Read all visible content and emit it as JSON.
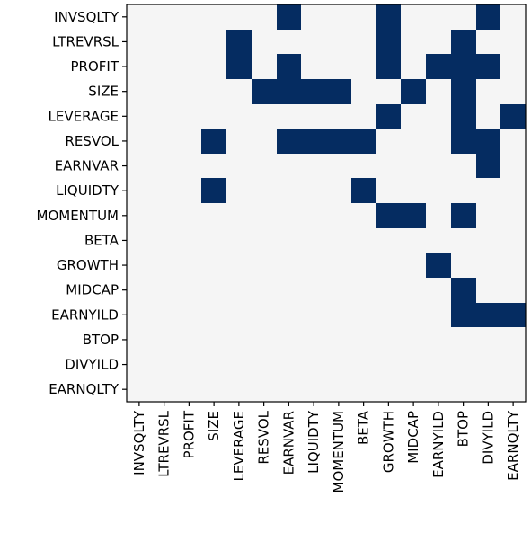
{
  "chart_data": {
    "type": "heatmap",
    "rows": [
      "INVSQLTY",
      "LTREVRSL",
      "PROFIT",
      "SIZE",
      "LEVERAGE",
      "RESVOL",
      "EARNVAR",
      "LIQUIDTY",
      "MOMENTUM",
      "BETA",
      "GROWTH",
      "MIDCAP",
      "EARNYILD",
      "BTOP",
      "DIVYILD",
      "EARNQLTY"
    ],
    "columns": [
      "INVSQLTY",
      "LTREVRSL",
      "PROFIT",
      "SIZE",
      "LEVERAGE",
      "RESVOL",
      "EARNVAR",
      "LIQUIDTY",
      "MOMENTUM",
      "BETA",
      "GROWTH",
      "MIDCAP",
      "EARNYILD",
      "BTOP",
      "DIVYILD",
      "EARNQLTY"
    ],
    "values": [
      [
        0,
        0,
        0,
        0,
        0,
        0,
        1,
        0,
        0,
        0,
        1,
        0,
        0,
        0,
        1,
        0
      ],
      [
        0,
        0,
        0,
        0,
        1,
        0,
        0,
        0,
        0,
        0,
        1,
        0,
        0,
        1,
        0,
        0
      ],
      [
        0,
        0,
        0,
        0,
        1,
        0,
        1,
        0,
        0,
        0,
        1,
        0,
        1,
        1,
        1,
        0
      ],
      [
        0,
        0,
        0,
        0,
        0,
        1,
        1,
        1,
        1,
        0,
        0,
        1,
        0,
        1,
        0,
        0
      ],
      [
        0,
        0,
        0,
        0,
        0,
        0,
        0,
        0,
        0,
        0,
        1,
        0,
        0,
        1,
        0,
        1
      ],
      [
        0,
        0,
        0,
        1,
        0,
        0,
        1,
        1,
        1,
        1,
        0,
        0,
        0,
        1,
        1,
        0
      ],
      [
        0,
        0,
        0,
        0,
        0,
        0,
        0,
        0,
        0,
        0,
        0,
        0,
        0,
        0,
        1,
        0
      ],
      [
        0,
        0,
        0,
        1,
        0,
        0,
        0,
        0,
        0,
        1,
        0,
        0,
        0,
        0,
        0,
        0
      ],
      [
        0,
        0,
        0,
        0,
        0,
        0,
        0,
        0,
        0,
        0,
        1,
        1,
        0,
        1,
        0,
        0
      ],
      [
        0,
        0,
        0,
        0,
        0,
        0,
        0,
        0,
        0,
        0,
        0,
        0,
        0,
        0,
        0,
        0
      ],
      [
        0,
        0,
        0,
        0,
        0,
        0,
        0,
        0,
        0,
        0,
        0,
        0,
        1,
        0,
        0,
        0
      ],
      [
        0,
        0,
        0,
        0,
        0,
        0,
        0,
        0,
        0,
        0,
        0,
        0,
        0,
        1,
        0,
        0
      ],
      [
        0,
        0,
        0,
        0,
        0,
        0,
        0,
        0,
        0,
        0,
        0,
        0,
        0,
        1,
        1,
        1
      ],
      [
        0,
        0,
        0,
        0,
        0,
        0,
        0,
        0,
        0,
        0,
        0,
        0,
        0,
        0,
        0,
        0
      ],
      [
        0,
        0,
        0,
        0,
        0,
        0,
        0,
        0,
        0,
        0,
        0,
        0,
        0,
        0,
        0,
        0
      ],
      [
        0,
        0,
        0,
        0,
        0,
        0,
        0,
        0,
        0,
        0,
        0,
        0,
        0,
        0,
        0,
        0
      ]
    ],
    "colors": {
      "off": "#f5f5f5",
      "on": "#052c61",
      "axis": "#000000"
    },
    "grid": false,
    "legend": "none"
  }
}
